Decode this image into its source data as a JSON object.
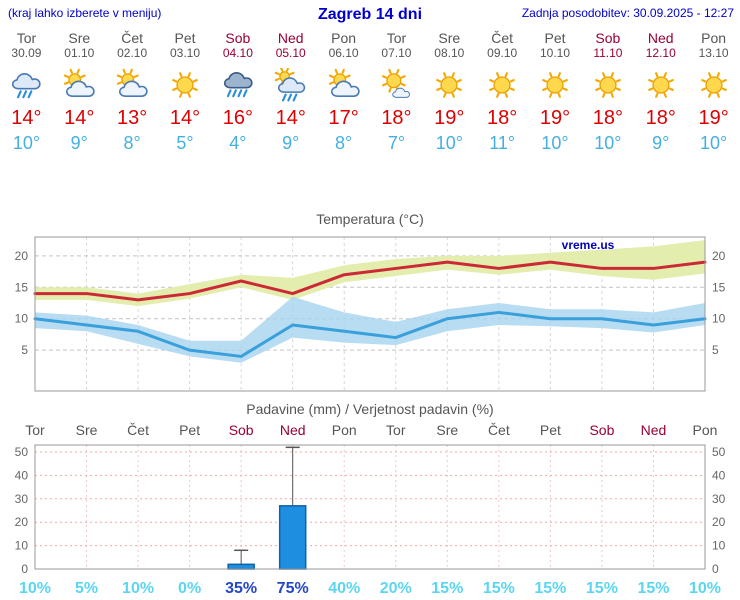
{
  "header": {
    "menu_hint": "(kraj lahko izberete v meniju)",
    "title": "Zagreb 14 dni",
    "updated": "Zadnja posodobitev: 30.09.2025 - 12:27"
  },
  "colors": {
    "header_blue": "#0000cc",
    "weekend_maroon": "#990033",
    "weekday_gray": "#555555",
    "high_temp_red": "#dd0000",
    "low_temp_blue": "#44b0e0",
    "max_line": "#cc2936",
    "min_line": "#3aa0dc",
    "max_band": "#e3edad",
    "min_band": "#a6d3ee",
    "bar_blue": "#1e8fe0",
    "probability_cyan": "#5cd6f0",
    "probability_highlight_blue": "#2446c8",
    "watermark_blue": "#0000bb"
  },
  "days": [
    {
      "name": "Tor",
      "date": "30.09",
      "icon": "rain",
      "high": "14°",
      "low": "10°",
      "weekend": false
    },
    {
      "name": "Sre",
      "date": "01.10",
      "icon": "partly-cloudy",
      "high": "14°",
      "low": "9°",
      "weekend": false
    },
    {
      "name": "Čet",
      "date": "02.10",
      "icon": "partly-cloudy",
      "high": "13°",
      "low": "8°",
      "weekend": false
    },
    {
      "name": "Pet",
      "date": "03.10",
      "icon": "sunny",
      "high": "14°",
      "low": "5°",
      "weekend": false
    },
    {
      "name": "Sob",
      "date": "04.10",
      "icon": "rain-heavy",
      "high": "16°",
      "low": "4°",
      "weekend": true
    },
    {
      "name": "Ned",
      "date": "05.10",
      "icon": "showers-sun",
      "high": "14°",
      "low": "9°",
      "weekend": true
    },
    {
      "name": "Pon",
      "date": "06.10",
      "icon": "partly-cloudy",
      "high": "17°",
      "low": "8°",
      "weekend": false
    },
    {
      "name": "Tor",
      "date": "07.10",
      "icon": "mostly-sunny",
      "high": "18°",
      "low": "7°",
      "weekend": false
    },
    {
      "name": "Sre",
      "date": "08.10",
      "icon": "sunny",
      "high": "19°",
      "low": "10°",
      "weekend": false
    },
    {
      "name": "Čet",
      "date": "09.10",
      "icon": "sunny",
      "high": "18°",
      "low": "11°",
      "weekend": false
    },
    {
      "name": "Pet",
      "date": "10.10",
      "icon": "sunny",
      "high": "19°",
      "low": "10°",
      "weekend": false
    },
    {
      "name": "Sob",
      "date": "11.10",
      "icon": "sunny",
      "high": "18°",
      "low": "10°",
      "weekend": true
    },
    {
      "name": "Ned",
      "date": "12.10",
      "icon": "sunny",
      "high": "18°",
      "low": "9°",
      "weekend": true
    },
    {
      "name": "Pon",
      "date": "13.10",
      "icon": "sunny",
      "high": "19°",
      "low": "10°",
      "weekend": false
    }
  ],
  "chart_data": [
    {
      "type": "line",
      "title": "Temperatura (°C)",
      "watermark": "vreme.us",
      "x_labels": [
        "Tor",
        "Sre",
        "Čet",
        "Pet",
        "Sob",
        "Ned",
        "Pon",
        "Tor",
        "Sre",
        "Čet",
        "Pet",
        "Sob",
        "Ned",
        "Pon"
      ],
      "ylim": [
        -1.5,
        23
      ],
      "yticks": [
        5,
        10,
        15,
        20
      ],
      "grid": true,
      "series": [
        {
          "name": "max-temperature",
          "color": "#cc2936",
          "values": [
            14,
            14,
            13,
            14,
            16,
            14,
            17,
            18,
            19,
            18,
            19,
            18,
            18,
            19
          ]
        },
        {
          "name": "min-temperature",
          "color": "#3aa0dc",
          "values": [
            10,
            9,
            8,
            5,
            4,
            9,
            8,
            7,
            10,
            11,
            10,
            10,
            9,
            10
          ]
        }
      ],
      "bands": [
        {
          "name": "max-range",
          "color": "#e3edad",
          "opacity": 1,
          "upper": [
            15,
            15,
            14,
            15.5,
            17,
            16.5,
            18.5,
            19.5,
            20,
            20,
            20.5,
            21,
            21.5,
            22.5
          ],
          "lower": [
            13,
            13,
            12,
            13.2,
            15,
            13,
            15.8,
            16.8,
            17.8,
            17,
            17.8,
            16.8,
            16.2,
            17.2
          ]
        },
        {
          "name": "min-range",
          "color": "#a6d3ee",
          "opacity": 0.8,
          "upper": [
            11,
            10.5,
            9,
            6.5,
            6.5,
            13.5,
            11,
            9.5,
            11.5,
            12.5,
            11.5,
            11.5,
            11,
            12.5
          ],
          "lower": [
            8.5,
            8,
            6,
            4,
            3,
            7,
            6.2,
            5.8,
            8,
            9,
            8.8,
            8.5,
            7.8,
            9
          ]
        }
      ]
    },
    {
      "type": "bar",
      "title": "Padavine (mm) / Verjetnost padavin (%)",
      "categories": [
        "Tor",
        "Sre",
        "Čet",
        "Pet",
        "Sob",
        "Ned",
        "Pon",
        "Tor",
        "Sre",
        "Čet",
        "Pet",
        "Sob",
        "Ned",
        "Pon"
      ],
      "weekend": [
        false,
        false,
        false,
        false,
        true,
        true,
        false,
        false,
        false,
        false,
        false,
        true,
        true,
        false
      ],
      "values_mm": [
        0,
        0,
        0,
        0,
        2,
        27,
        0,
        0,
        0,
        0,
        0,
        0,
        0,
        0
      ],
      "whisker_max_mm": [
        0,
        0,
        0,
        0,
        8,
        52,
        0,
        0,
        0,
        0,
        0,
        0,
        0,
        0
      ],
      "probability_pct": [
        10,
        5,
        10,
        0,
        35,
        75,
        40,
        20,
        15,
        15,
        15,
        15,
        15,
        10
      ],
      "probability_highlight": [
        false,
        false,
        false,
        false,
        true,
        true,
        false,
        false,
        false,
        false,
        false,
        false,
        false,
        false
      ],
      "ylim": [
        0,
        53
      ],
      "yticks": [
        0,
        10,
        20,
        30,
        40,
        50
      ]
    }
  ]
}
